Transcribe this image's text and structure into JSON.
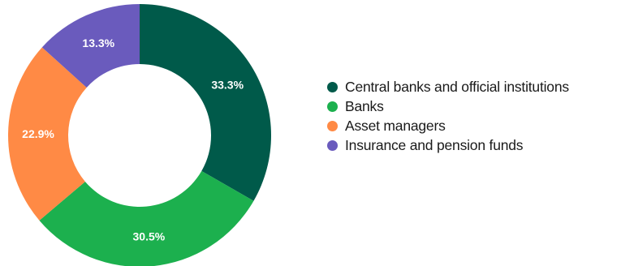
{
  "chart_data": {
    "type": "pie",
    "categories": [
      "Central banks and official institutions",
      "Banks",
      "Asset managers",
      "Insurance and pension funds"
    ],
    "values": [
      33.3,
      30.5,
      22.9,
      13.3
    ],
    "value_labels": [
      "33.3%",
      "30.5%",
      "22.9%",
      "13.3%"
    ],
    "colors": [
      "#005a4a",
      "#1cb04e",
      "#ff8a45",
      "#6a5bbd"
    ],
    "donut": true,
    "legend_position": "right"
  }
}
